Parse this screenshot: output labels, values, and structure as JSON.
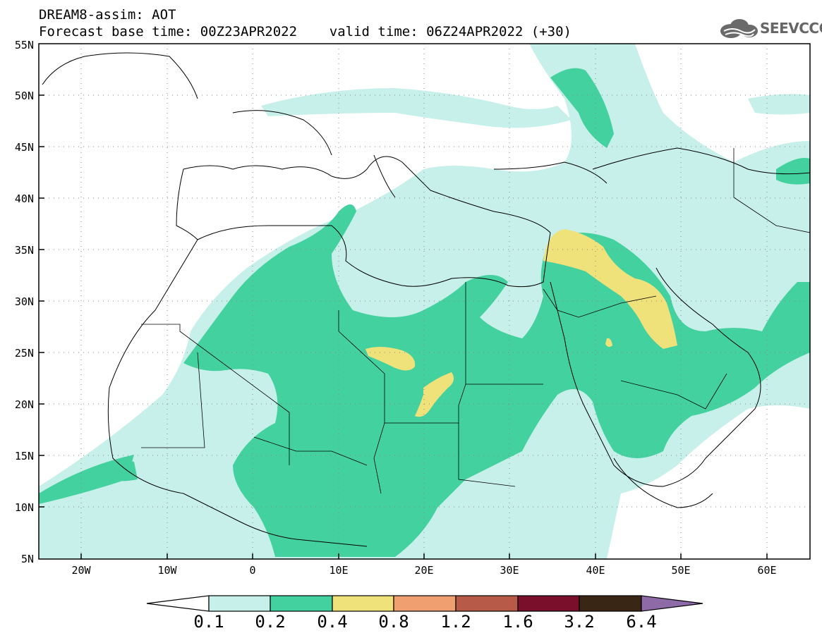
{
  "header": {
    "line1": "DREAM8-assim: AOT",
    "line2": "Forecast base time: 00Z23APR2022    valid time: 06Z24APR2022 (+30)",
    "logo_text": "SEEVCCC"
  },
  "map": {
    "lat_labels": [
      "55N",
      "50N",
      "45N",
      "40N",
      "35N",
      "30N",
      "25N",
      "20N",
      "15N",
      "10N",
      "5N"
    ],
    "lon_labels": [
      "20W",
      "10W",
      "0",
      "10E",
      "20E",
      "30E",
      "40E",
      "50E",
      "60E"
    ],
    "colors": {
      "c01": "#c8f0ea",
      "c02": "#44d1a0",
      "c04": "#f0e27a",
      "c08": "#f0a070",
      "c12": "#b85a48",
      "c16": "#7a0f2c",
      "c32": "#3a2614",
      "c64": "#8e6aa6"
    }
  },
  "legend": {
    "labels": [
      "0.1",
      "0.2",
      "0.4",
      "0.8",
      "1.2",
      "1.6",
      "3.2",
      "6.4"
    ],
    "colors": [
      "#ffffff",
      "#c8f0ea",
      "#44d1a0",
      "#f0e27a",
      "#f0a070",
      "#b85a48",
      "#7a0f2c",
      "#3a2614",
      "#8e6aa6"
    ]
  }
}
